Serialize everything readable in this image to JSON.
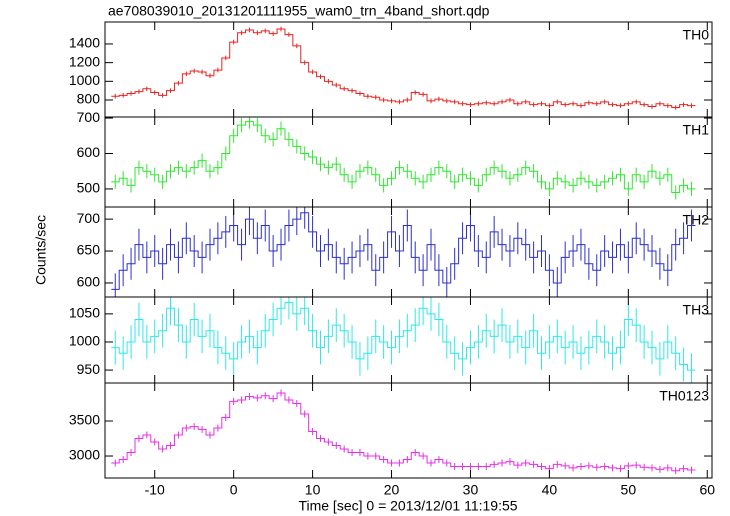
{
  "chart_data": {
    "type": "step",
    "title": "ae708039010_20131201111955_wam0_trn_4band_short.qdp",
    "xlabel": "Time [sec] 0 = 2013/12/01 11:19:55",
    "ylabel": "Counts/sec",
    "xlim": [
      -16.3,
      60.6
    ],
    "xticks": [
      -10,
      0,
      10,
      20,
      30,
      40,
      50,
      60
    ],
    "x": [
      -15,
      -14,
      -13,
      -12,
      -11,
      -10,
      -9,
      -8,
      -7,
      -6,
      -5,
      -4,
      -3,
      -2,
      -1,
      0,
      1,
      2,
      3,
      4,
      5,
      6,
      7,
      8,
      9,
      10,
      11,
      12,
      13,
      14,
      15,
      16,
      17,
      18,
      19,
      20,
      21,
      22,
      23,
      24,
      25,
      26,
      27,
      28,
      29,
      30,
      31,
      32,
      33,
      34,
      35,
      36,
      37,
      38,
      39,
      40,
      41,
      42,
      43,
      44,
      45,
      46,
      47,
      48,
      49,
      50,
      51,
      52,
      53,
      54,
      55,
      56,
      57,
      58
    ],
    "panels": [
      {
        "name": "TH0",
        "color": "#e8231f",
        "ylim": [
          618,
          1635
        ],
        "yticks": [
          800,
          1000,
          1200,
          1400
        ],
        "yerr": 25,
        "values": [
          840,
          850,
          870,
          890,
          920,
          880,
          850,
          900,
          980,
          1080,
          1110,
          1100,
          1060,
          1120,
          1250,
          1420,
          1520,
          1550,
          1520,
          1540,
          1510,
          1560,
          1500,
          1380,
          1200,
          1100,
          1050,
          1000,
          960,
          920,
          900,
          870,
          840,
          830,
          800,
          790,
          780,
          800,
          880,
          860,
          790,
          810,
          790,
          780,
          760,
          750,
          760,
          770,
          760,
          780,
          800,
          760,
          780,
          750,
          760,
          740,
          780,
          750,
          760,
          740,
          770,
          760,
          780,
          750,
          740,
          760,
          780,
          750,
          730,
          760,
          740,
          720,
          750,
          740
        ]
      },
      {
        "name": "TH1",
        "color": "#2ee82e",
        "ylim": [
          449,
          703
        ],
        "yticks": [
          500,
          600,
          700
        ],
        "yerr": 20,
        "values": [
          520,
          530,
          510,
          560,
          550,
          540,
          520,
          550,
          560,
          550,
          560,
          580,
          550,
          560,
          600,
          650,
          680,
          690,
          680,
          650,
          640,
          670,
          640,
          620,
          600,
          590,
          570,
          560,
          570,
          540,
          520,
          550,
          560,
          540,
          510,
          530,
          560,
          550,
          530,
          520,
          540,
          560,
          550,
          520,
          540,
          530,
          510,
          540,
          560,
          550,
          530,
          540,
          560,
          550,
          520,
          500,
          530,
          520,
          510,
          530,
          520,
          510,
          520,
          530,
          540,
          500,
          540,
          520,
          550,
          530,
          540,
          490,
          510,
          500
        ]
      },
      {
        "name": "TH2",
        "color": "#2b2fd1",
        "ylim": [
          578,
          719
        ],
        "yticks": [
          600,
          650,
          700
        ],
        "yerr": 25,
        "values": [
          590,
          620,
          630,
          660,
          640,
          650,
          630,
          660,
          640,
          670,
          650,
          640,
          660,
          670,
          680,
          690,
          660,
          700,
          670,
          690,
          650,
          660,
          690,
          700,
          710,
          680,
          650,
          660,
          640,
          630,
          640,
          650,
          660,
          620,
          640,
          680,
          650,
          690,
          640,
          620,
          660,
          620,
          600,
          630,
          670,
          690,
          650,
          640,
          680,
          660,
          650,
          670,
          660,
          640,
          650,
          620,
          600,
          640,
          650,
          660,
          630,
          620,
          650,
          640,
          660,
          640,
          670,
          660,
          650,
          630,
          620,
          660,
          670,
          690
        ]
      },
      {
        "name": "TH3",
        "color": "#2ee8e8",
        "ylim": [
          927,
          1080
        ],
        "yticks": [
          950,
          1000,
          1050
        ],
        "yerr": 30,
        "values": [
          990,
          980,
          1000,
          1040,
          1000,
          1010,
          1020,
          1060,
          1030,
          1000,
          1040,
          1010,
          1020,
          990,
          980,
          970,
          1000,
          1010,
          990,
          1020,
          1040,
          1060,
          1070,
          1050,
          1060,
          1020,
          990,
          1010,
          1030,
          1020,
          1000,
          970,
          980,
          1010,
          1000,
          990,
          1010,
          1020,
          1030,
          1060,
          1050,
          1040,
          1000,
          980,
          970,
          990,
          1000,
          1020,
          1010,
          1030,
          1000,
          1010,
          990,
          1020,
          980,
          1000,
          1010,
          990,
          1000,
          980,
          990,
          1010,
          1000,
          980,
          990,
          1040,
          1030,
          1000,
          990,
          970,
          1000,
          980,
          960,
          950
        ]
      },
      {
        "name": "TH0123",
        "color": "#e82ee8",
        "ylim": [
          2686,
          4043
        ],
        "yticks": [
          3000,
          3500
        ],
        "yerr": 50,
        "values": [
          2900,
          2950,
          3050,
          3250,
          3300,
          3200,
          3100,
          3150,
          3300,
          3400,
          3420,
          3380,
          3300,
          3400,
          3550,
          3780,
          3800,
          3850,
          3830,
          3860,
          3820,
          3900,
          3800,
          3750,
          3600,
          3350,
          3250,
          3200,
          3150,
          3100,
          3050,
          3050,
          3000,
          3000,
          2950,
          2900,
          2900,
          2950,
          3050,
          3000,
          2900,
          2950,
          2900,
          2850,
          2850,
          2850,
          2850,
          2850,
          2880,
          2900,
          2920,
          2870,
          2900,
          2880,
          2850,
          2820,
          2880,
          2860,
          2830,
          2850,
          2860,
          2840,
          2850,
          2830,
          2820,
          2860,
          2870,
          2840,
          2830,
          2810,
          2830,
          2790,
          2820,
          2800
        ]
      }
    ]
  }
}
